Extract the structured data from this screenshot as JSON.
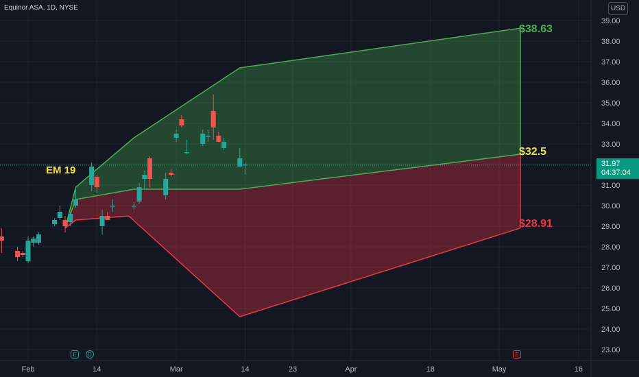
{
  "header": {
    "title": "Equinor ASA, 1D, NYSE",
    "currency": "USD"
  },
  "last_price": {
    "value": "31.97",
    "countdown": "04:37:04"
  },
  "annotations": {
    "em_label": "EM 19",
    "upper_label": "$38.63",
    "mid_label": "$32.5",
    "lower_label": "$28.91"
  },
  "events": {
    "earnings_1": "E",
    "dividend": "D",
    "earnings_2": "E"
  },
  "colors": {
    "background": "#131722",
    "up": "#26a69a",
    "down": "#ef5350",
    "upper_band": "#4caf50",
    "lower_band": "#f23645",
    "mid_label": "#f5e43b"
  },
  "chart_data": {
    "type": "candlestick",
    "title": "Equinor ASA, 1D, NYSE",
    "y_axis": {
      "range": [
        22.5,
        39.5
      ],
      "ticks": [
        "23.00",
        "24.00",
        "25.00",
        "26.00",
        "27.00",
        "28.00",
        "29.00",
        "30.00",
        "31.00",
        "32.00",
        "33.00",
        "34.00",
        "35.00",
        "36.00",
        "37.00",
        "38.00",
        "39.00"
      ]
    },
    "x_axis": {
      "ticks": [
        {
          "label": "Feb",
          "date": "2023-02-01"
        },
        {
          "label": "14",
          "date": "2023-02-14"
        },
        {
          "label": "Mar",
          "date": "2023-03-01"
        },
        {
          "label": "14",
          "date": "2023-03-14"
        },
        {
          "label": "23",
          "date": "2023-03-23"
        },
        {
          "label": "Apr",
          "date": "2023-04-03"
        },
        {
          "label": "18",
          "date": "2023-04-18"
        },
        {
          "label": "May",
          "date": "2023-05-01"
        },
        {
          "label": "16",
          "date": "2023-05-16"
        }
      ]
    },
    "candles": [
      {
        "date": "2023-01-26",
        "o": 28.8,
        "h": 29.1,
        "l": 28.0,
        "c": 28.1
      },
      {
        "date": "2023-01-27",
        "o": 28.5,
        "h": 28.9,
        "l": 27.7,
        "c": 28.3
      },
      {
        "date": "2023-01-30",
        "o": 27.8,
        "h": 28.0,
        "l": 27.3,
        "c": 27.5
      },
      {
        "date": "2023-01-31",
        "o": 27.7,
        "h": 27.8,
        "l": 27.5,
        "c": 27.6
      },
      {
        "date": "2023-02-01",
        "o": 27.3,
        "h": 28.5,
        "l": 27.2,
        "c": 28.3
      },
      {
        "date": "2023-02-02",
        "o": 28.2,
        "h": 28.5,
        "l": 28.0,
        "c": 28.4
      },
      {
        "date": "2023-02-03",
        "o": 28.2,
        "h": 28.7,
        "l": 28.1,
        "c": 28.6
      },
      {
        "date": "2023-02-06",
        "o": 29.1,
        "h": 29.4,
        "l": 29.0,
        "c": 29.3
      },
      {
        "date": "2023-02-07",
        "o": 29.4,
        "h": 30.0,
        "l": 29.3,
        "c": 29.7
      },
      {
        "date": "2023-02-08",
        "o": 29.3,
        "h": 29.5,
        "l": 28.7,
        "c": 29.0
      },
      {
        "date": "2023-02-09",
        "o": 29.2,
        "h": 29.7,
        "l": 29.0,
        "c": 29.6
      },
      {
        "date": "2023-02-10",
        "o": 30.0,
        "h": 30.8,
        "l": 29.9,
        "c": 30.3
      },
      {
        "date": "2023-02-13",
        "o": 31.0,
        "h": 32.1,
        "l": 30.7,
        "c": 31.9
      },
      {
        "date": "2023-02-14",
        "o": 31.4,
        "h": 31.5,
        "l": 30.6,
        "c": 30.9
      },
      {
        "date": "2023-02-15",
        "o": 29.0,
        "h": 29.8,
        "l": 28.6,
        "c": 29.5
      },
      {
        "date": "2023-02-16",
        "o": 29.5,
        "h": 29.7,
        "l": 29.3,
        "c": 29.3
      },
      {
        "date": "2023-02-17",
        "o": 30.0,
        "h": 30.3,
        "l": 29.7,
        "c": 30.0
      },
      {
        "date": "2023-02-21",
        "o": 30.0,
        "h": 30.2,
        "l": 29.8,
        "c": 30.0
      },
      {
        "date": "2023-02-22",
        "o": 30.2,
        "h": 31.1,
        "l": 30.1,
        "c": 30.9
      },
      {
        "date": "2023-02-23",
        "o": 31.3,
        "h": 31.7,
        "l": 30.8,
        "c": 31.5
      },
      {
        "date": "2023-02-24",
        "o": 32.3,
        "h": 32.4,
        "l": 30.9,
        "c": 31.3
      },
      {
        "date": "2023-02-27",
        "o": 30.5,
        "h": 31.6,
        "l": 30.3,
        "c": 31.3
      },
      {
        "date": "2023-02-28",
        "o": 31.6,
        "h": 31.8,
        "l": 31.4,
        "c": 31.5
      },
      {
        "date": "2023-03-01",
        "o": 33.3,
        "h": 33.7,
        "l": 33.1,
        "c": 33.5
      },
      {
        "date": "2023-03-02",
        "o": 34.2,
        "h": 34.4,
        "l": 33.8,
        "c": 33.9
      },
      {
        "date": "2023-03-03",
        "o": 32.6,
        "h": 33.2,
        "l": 32.5,
        "c": 32.6
      },
      {
        "date": "2023-03-06",
        "o": 33.0,
        "h": 33.7,
        "l": 32.9,
        "c": 33.5
      },
      {
        "date": "2023-03-07",
        "o": 33.4,
        "h": 33.7,
        "l": 33.1,
        "c": 33.4
      },
      {
        "date": "2023-03-08",
        "o": 34.6,
        "h": 35.4,
        "l": 33.2,
        "c": 33.8
      },
      {
        "date": "2023-03-09",
        "o": 33.4,
        "h": 33.6,
        "l": 33.1,
        "c": 33.1
      },
      {
        "date": "2023-03-10",
        "o": 32.8,
        "h": 33.3,
        "l": 32.7,
        "c": 33.1
      },
      {
        "date": "2023-03-13",
        "o": 31.9,
        "h": 32.8,
        "l": 31.9,
        "c": 32.3
      },
      {
        "date": "2023-03-14",
        "o": 31.97,
        "h": 32.1,
        "l": 31.5,
        "c": 32.0
      }
    ],
    "last_price": 31.97,
    "expected_move": {
      "label": "EM 19",
      "upper_end": 38.63,
      "mid_end": 32.5,
      "lower_end": 28.91,
      "end_date": "2023-05-05"
    }
  }
}
